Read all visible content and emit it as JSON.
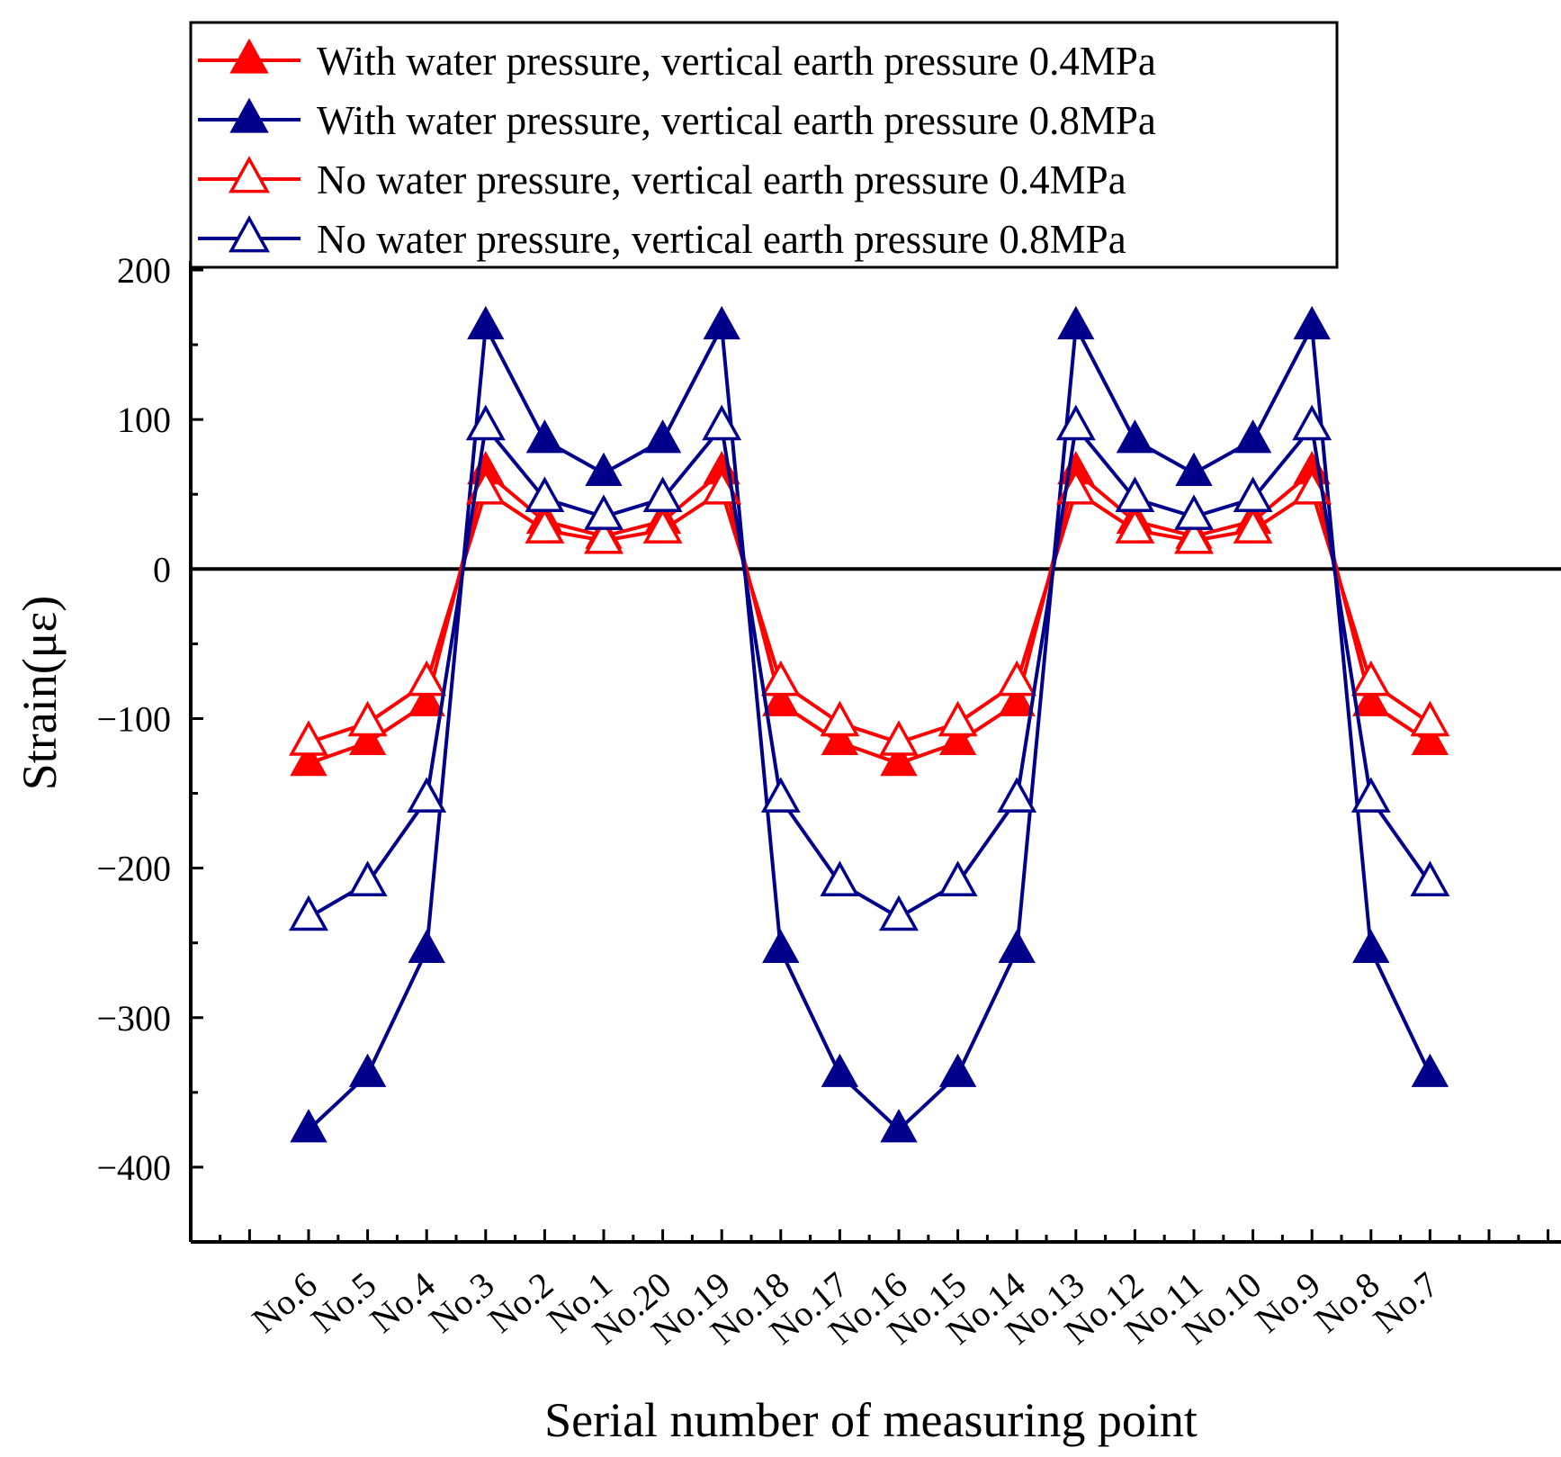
{
  "chart_data": {
    "type": "line",
    "title": "",
    "xlabel": "Serial number of measuring point",
    "ylabel": "Strain(με)",
    "ylim": [
      -450,
      200
    ],
    "yticks": [
      200,
      100,
      0,
      -100,
      -200,
      -300,
      -400
    ],
    "ytick_labels": [
      "200",
      "100",
      "0",
      "−100",
      "−200",
      "−300",
      "−400"
    ],
    "categories": [
      "No.6",
      "No.5",
      "No.4",
      "No.3",
      "No.2",
      "No.1",
      "No.20",
      "No.19",
      "No.18",
      "No.17",
      "No.16",
      "No.15",
      "No.14",
      "No.13",
      "No.12",
      "No.11",
      "No.10",
      "No.9",
      "No.8",
      "No.7"
    ],
    "legend_position": "top",
    "zero_line": true,
    "series": [
      {
        "name": "With water pressure, vertical earth pressure 0.4MPa",
        "color": "#ff0000",
        "marker": "filled-triangle",
        "values": [
          -130,
          -116,
          -90,
          65,
          32,
          22,
          32,
          65,
          -90,
          -116,
          -130,
          -116,
          -90,
          65,
          32,
          22,
          32,
          65,
          -90,
          -116
        ]
      },
      {
        "name": "With water pressure, vertical earth pressure 0.8MPa",
        "color": "#00008b",
        "marker": "filled-triangle",
        "values": [
          -375,
          -338,
          -255,
          162,
          86,
          64,
          86,
          162,
          -255,
          -338,
          -375,
          -338,
          -255,
          162,
          86,
          64,
          86,
          162,
          -255,
          -338
        ]
      },
      {
        "name": "No water pressure, vertical earth pressure 0.4MPa",
        "color": "#ff0000",
        "marker": "hollow-triangle",
        "values": [
          -116,
          -103,
          -76,
          52,
          26,
          19,
          26,
          52,
          -76,
          -103,
          -116,
          -103,
          -76,
          52,
          26,
          19,
          26,
          52,
          -76,
          -103
        ]
      },
      {
        "name": "No water pressure, vertical earth pressure 0.8MPa",
        "color": "#00008b",
        "marker": "hollow-triangle",
        "values": [
          -233,
          -210,
          -154,
          95,
          47,
          35,
          47,
          95,
          -154,
          -210,
          -233,
          -210,
          -154,
          95,
          47,
          35,
          47,
          95,
          -154,
          -210
        ]
      }
    ]
  }
}
